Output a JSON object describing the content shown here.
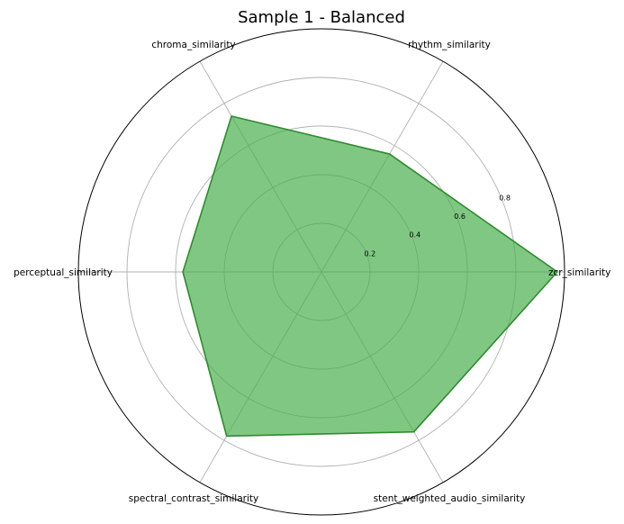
{
  "chart_data": {
    "type": "radar",
    "title": "Sample 1 - Balanced",
    "categories": [
      "zcr_similarity",
      "rhythm_similarity",
      "chroma_similarity",
      "perceptual_similarity",
      "spectral_contrast_similarity",
      "stent_weighted_audio_similarity"
    ],
    "values": [
      0.97,
      0.56,
      0.74,
      0.57,
      0.78,
      0.76
    ],
    "rlim": [
      0,
      1.0
    ],
    "radial_ticks": [
      "0.2",
      "0.4",
      "0.6",
      "0.8"
    ],
    "radial_tick_values": [
      0.2,
      0.4,
      0.6,
      0.8
    ],
    "grid": true,
    "colors": {
      "fill": "#4caf50",
      "line": "#2e8b2e",
      "grid": "#b0b0b0"
    }
  }
}
